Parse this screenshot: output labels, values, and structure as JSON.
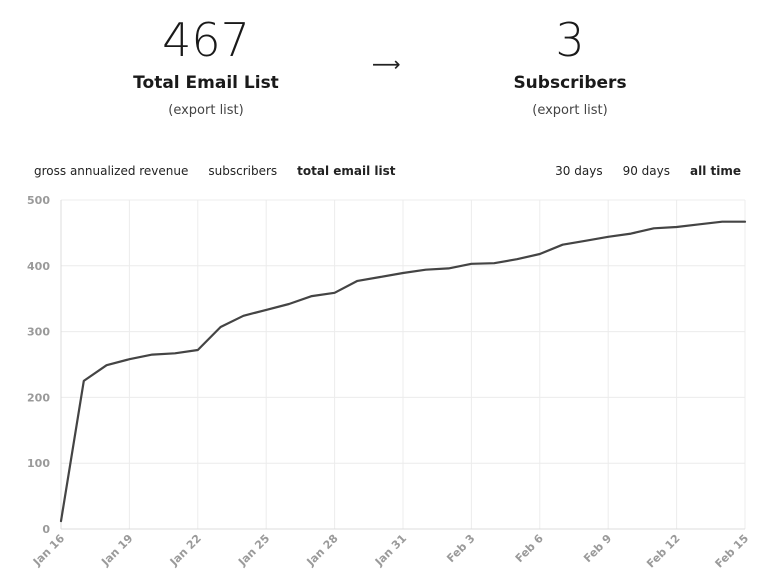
{
  "stats": {
    "left": {
      "value": "467",
      "label": "Total Email List",
      "link": "(export list)"
    },
    "arrow": "⟶",
    "right": {
      "value": "3",
      "label": "Subscribers",
      "link": "(export list)"
    }
  },
  "metric_tabs": [
    {
      "label": "gross annualized revenue",
      "active": false
    },
    {
      "label": "subscribers",
      "active": false
    },
    {
      "label": "total email list",
      "active": true
    }
  ],
  "range_tabs": [
    {
      "label": "30 days",
      "active": false
    },
    {
      "label": "90 days",
      "active": false
    },
    {
      "label": "all time",
      "active": true
    }
  ],
  "colors": {
    "line": "#444444",
    "grid": "#ececec",
    "tick_text": "#9a9a9a"
  },
  "chart_data": {
    "type": "line",
    "title": "",
    "xlabel": "",
    "ylabel": "",
    "ylim": [
      0,
      500
    ],
    "yticks": [
      0,
      100,
      200,
      300,
      400,
      500
    ],
    "xticks": [
      "Jan 16",
      "Jan 19",
      "Jan 22",
      "Jan 25",
      "Jan 28",
      "Jan 31",
      "Feb 3",
      "Feb 6",
      "Feb 9",
      "Feb 12",
      "Feb 15"
    ],
    "grid": true,
    "x": [
      "Jan 16",
      "Jan 17",
      "Jan 18",
      "Jan 19",
      "Jan 20",
      "Jan 21",
      "Jan 22",
      "Jan 23",
      "Jan 24",
      "Jan 25",
      "Jan 26",
      "Jan 27",
      "Jan 28",
      "Jan 29",
      "Jan 30",
      "Jan 31",
      "Feb 1",
      "Feb 2",
      "Feb 3",
      "Feb 4",
      "Feb 5",
      "Feb 6",
      "Feb 7",
      "Feb 8",
      "Feb 9",
      "Feb 10",
      "Feb 11",
      "Feb 12",
      "Feb 13",
      "Feb 14",
      "Feb 15"
    ],
    "series": [
      {
        "values": [
          12,
          225,
          249,
          258,
          265,
          267,
          272,
          307,
          324,
          333,
          342,
          354,
          359,
          377,
          383,
          389,
          394,
          396,
          403,
          404,
          410,
          418,
          432,
          438,
          444,
          449,
          457,
          459,
          463,
          467,
          467
        ]
      }
    ]
  }
}
